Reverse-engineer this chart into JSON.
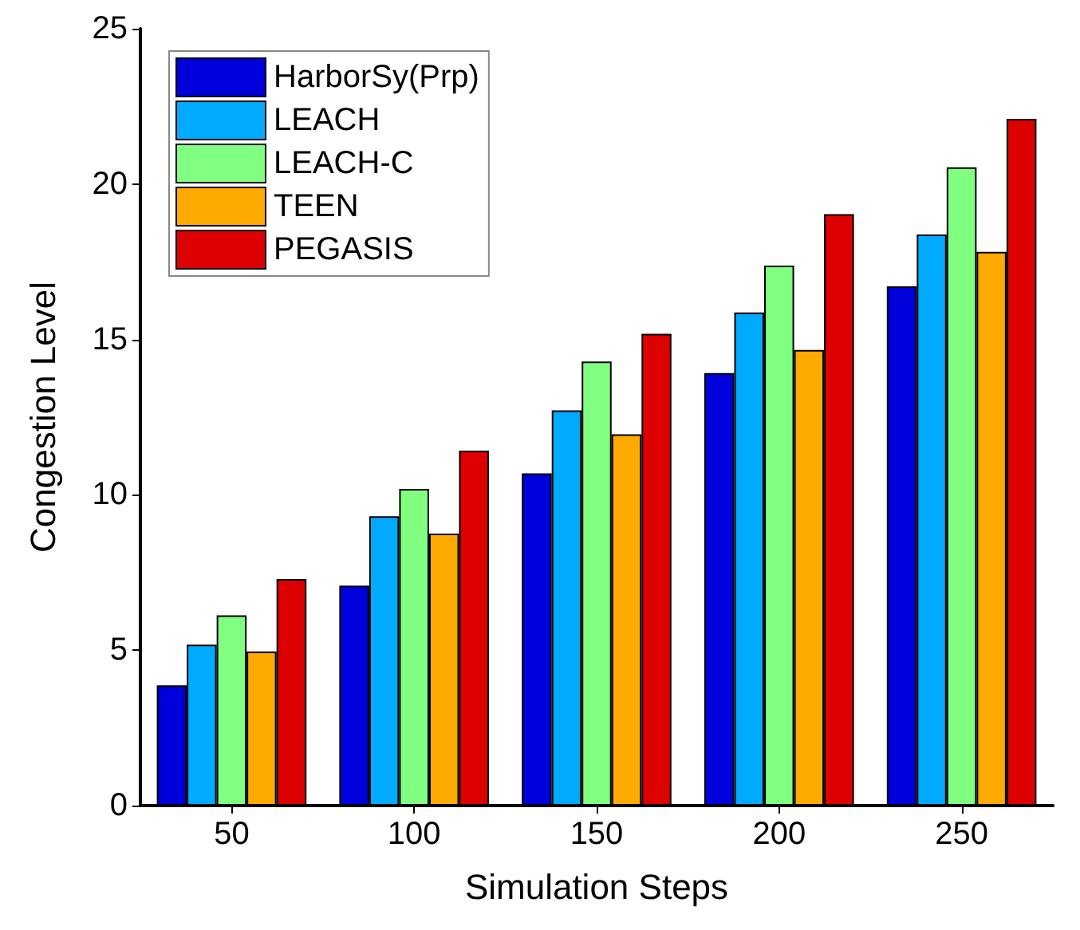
{
  "chart_data": {
    "type": "bar",
    "xlabel": "Simulation Steps",
    "ylabel": "Congestion Level",
    "categories": [
      "50",
      "100",
      "150",
      "200",
      "250"
    ],
    "ylim": [
      0,
      25
    ],
    "yticks": [
      0,
      5,
      10,
      15,
      20,
      25
    ],
    "grid": false,
    "legend": "top left",
    "series": [
      {
        "name": "HarborSy(Prp)",
        "color": "#0000dd",
        "values": [
          3.87,
          7.08,
          10.69,
          13.92,
          16.71
        ]
      },
      {
        "name": "LEACH",
        "color": "#00aaff",
        "values": [
          5.18,
          9.31,
          12.72,
          15.87,
          18.38
        ]
      },
      {
        "name": "LEACH-C",
        "color": "#80ff80",
        "values": [
          6.12,
          10.19,
          14.29,
          17.38,
          20.54
        ]
      },
      {
        "name": "TEEN",
        "color": "#ffaa00",
        "values": [
          4.96,
          8.75,
          11.95,
          14.66,
          17.82
        ]
      },
      {
        "name": "PEGASIS",
        "color": "#dd0000",
        "values": [
          7.29,
          11.42,
          15.18,
          19.03,
          22.1
        ]
      }
    ]
  }
}
